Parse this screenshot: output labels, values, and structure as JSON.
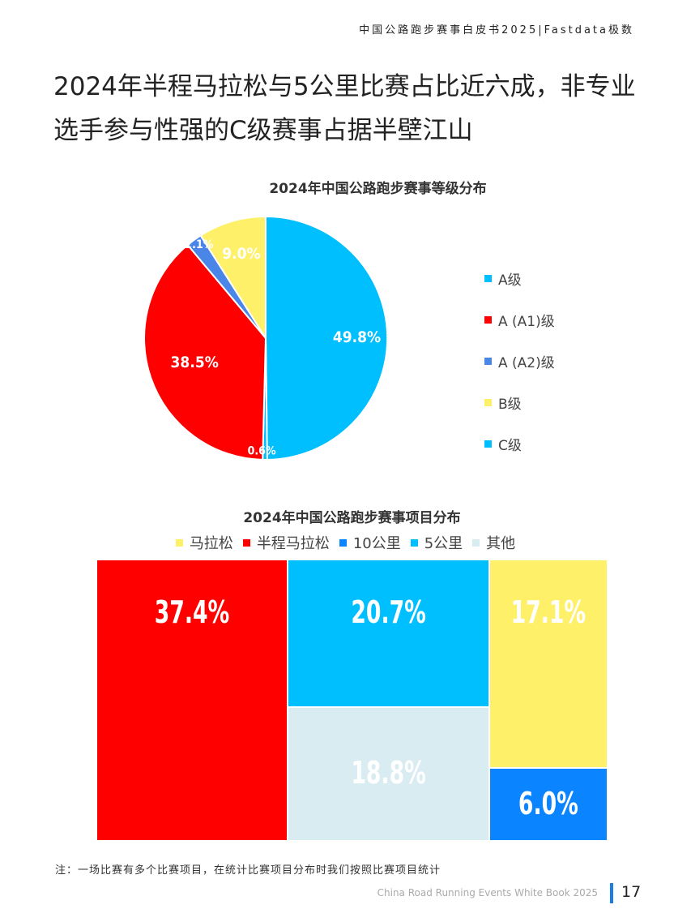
{
  "header": {
    "text": "中国公路跑步赛事白皮书2025|Fastdata极数"
  },
  "page_title": "2024年半程马拉松与5公里比赛占比近六成，非专业选手参与性强的C级赛事占据半壁江山",
  "colors": {
    "a_level": "#00bfff",
    "a1_level": "#ff0000",
    "a2_level": "#4a86e8",
    "b_level": "#fff06a",
    "c_level": "#00bfff",
    "marathon": "#fff06a",
    "half": "#ff0000",
    "tenk": "#0a84ff",
    "fivek": "#00bfff",
    "other": "#d8ecf2"
  },
  "chart_data": [
    {
      "type": "pie",
      "title": "2024年中国公路跑步赛事等级分布",
      "legend_position": "right",
      "slices": [
        {
          "label": "C级",
          "value": 49.8,
          "display": "49.8%",
          "color": "#00bfff"
        },
        {
          "label": "A级",
          "value": 0.6,
          "display": "0.6%",
          "color": "#00bfff"
        },
        {
          "label": "A (A1)级",
          "value": 38.5,
          "display": "38.5%",
          "color": "#ff0000"
        },
        {
          "label": "A (A2)级",
          "value": 2.1,
          "display": "2.1%",
          "color": "#4a86e8"
        },
        {
          "label": "B级",
          "value": 9.0,
          "display": "9.0%",
          "color": "#fff06a"
        }
      ],
      "legend": [
        {
          "label": "A级",
          "color": "#00bfff"
        },
        {
          "label": "A (A1)级",
          "color": "#ff0000"
        },
        {
          "label": "A (A2)级",
          "color": "#4a86e8"
        },
        {
          "label": "B级",
          "color": "#fff06a"
        },
        {
          "label": "C级",
          "color": "#00bfff"
        }
      ]
    },
    {
      "type": "treemap",
      "title": "2024年中国公路跑步赛事项目分布",
      "legend_position": "top",
      "legend": [
        {
          "label": "马拉松",
          "color": "#fff06a"
        },
        {
          "label": "半程马拉松",
          "color": "#ff0000"
        },
        {
          "label": "10公里",
          "color": "#0a84ff"
        },
        {
          "label": "5公里",
          "color": "#00bfff"
        },
        {
          "label": "其他",
          "color": "#d8ecf2"
        }
      ],
      "tiles": [
        {
          "category": "半程马拉松",
          "value": 37.4,
          "display": "37.4%"
        },
        {
          "category": "5公里",
          "value": 20.7,
          "display": "20.7%"
        },
        {
          "category": "其他",
          "value": 18.8,
          "display": "18.8%"
        },
        {
          "category": "马拉松",
          "value": 17.1,
          "display": "17.1%"
        },
        {
          "category": "10公里",
          "value": 6.0,
          "display": "6.0%"
        }
      ]
    }
  ],
  "footnote": "注：一场比赛有多个比赛项目，在统计比赛项目分布时我们按照比赛项目统计",
  "footer": {
    "text": "China Road Running Events White Book 2025",
    "page_number": "17"
  }
}
